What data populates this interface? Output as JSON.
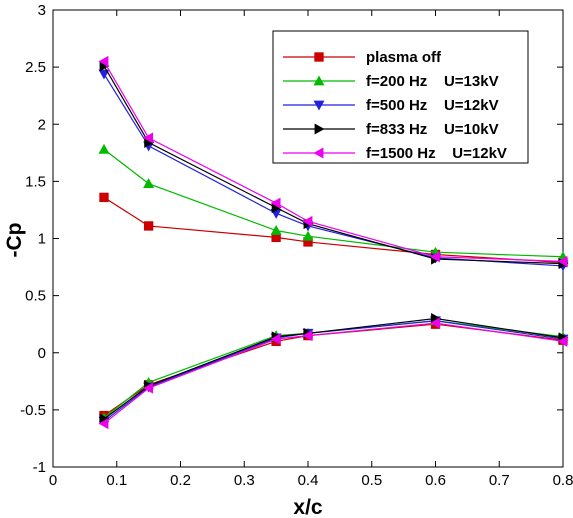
{
  "chart_data": {
    "type": "line",
    "xlabel": "x/c",
    "ylabel": "-Cp",
    "xlim": [
      0,
      0.8
    ],
    "ylim": [
      -1,
      3
    ],
    "xticks": [
      "0",
      "0.1",
      "0.2",
      "0.3",
      "0.4",
      "0.5",
      "0.6",
      "0.7",
      "0.8"
    ],
    "yticks": [
      "-1",
      "-0.5",
      "0",
      "0.5",
      "1",
      "1.5",
      "2",
      "2.5",
      "3"
    ],
    "xtick_values": [
      0,
      0.1,
      0.2,
      0.3,
      0.4,
      0.5,
      0.6,
      0.7,
      0.8
    ],
    "ytick_values": [
      -1,
      -0.5,
      0,
      0.5,
      1,
      1.5,
      2,
      2.5,
      3
    ],
    "grid": false,
    "legend_position": "top-right",
    "series": [
      {
        "name": "plasma off",
        "color": "#cc0000",
        "marker": "square",
        "upper": {
          "x": [
            0.08,
            0.15,
            0.35,
            0.4,
            0.6,
            0.8
          ],
          "y": [
            1.36,
            1.11,
            1.01,
            0.97,
            0.86,
            0.79
          ]
        },
        "lower": {
          "x": [
            0.08,
            0.15,
            0.35,
            0.4,
            0.6,
            0.8
          ],
          "y": [
            -0.55,
            -0.28,
            0.1,
            0.15,
            0.25,
            0.11
          ]
        }
      },
      {
        "name": "f=200 Hz    U=13kV",
        "color": "#00bb00",
        "marker": "triangle-up",
        "upper": {
          "x": [
            0.08,
            0.15,
            0.35,
            0.4,
            0.6,
            0.8
          ],
          "y": [
            1.78,
            1.48,
            1.07,
            1.02,
            0.88,
            0.84
          ]
        },
        "lower": {
          "x": [
            0.08,
            0.15,
            0.35,
            0.4,
            0.6,
            0.8
          ],
          "y": [
            -0.57,
            -0.26,
            0.15,
            0.17,
            0.28,
            0.14
          ]
        }
      },
      {
        "name": "f=500 Hz    U=12kV",
        "color": "#2222dd",
        "marker": "triangle-down",
        "upper": {
          "x": [
            0.08,
            0.15,
            0.35,
            0.4,
            0.6,
            0.8
          ],
          "y": [
            2.44,
            1.81,
            1.22,
            1.11,
            0.83,
            0.76
          ]
        },
        "lower": {
          "x": [
            0.08,
            0.15,
            0.35,
            0.4,
            0.6,
            0.8
          ],
          "y": [
            -0.6,
            -0.3,
            0.13,
            0.17,
            0.28,
            0.12
          ]
        }
      },
      {
        "name": "f=833 Hz    U=10kV",
        "color": "#000000",
        "marker": "triangle-right",
        "upper": {
          "x": [
            0.08,
            0.15,
            0.35,
            0.4,
            0.6,
            0.8
          ],
          "y": [
            2.51,
            1.84,
            1.27,
            1.13,
            0.82,
            0.78
          ]
        },
        "lower": {
          "x": [
            0.08,
            0.15,
            0.35,
            0.4,
            0.6,
            0.8
          ],
          "y": [
            -0.58,
            -0.29,
            0.14,
            0.17,
            0.3,
            0.13
          ]
        }
      },
      {
        "name": "f=1500 Hz    U=12kV",
        "color": "#ee00ee",
        "marker": "triangle-left",
        "upper": {
          "x": [
            0.08,
            0.15,
            0.35,
            0.4,
            0.6,
            0.8
          ],
          "y": [
            2.55,
            1.88,
            1.31,
            1.15,
            0.84,
            0.8
          ]
        },
        "lower": {
          "x": [
            0.08,
            0.15,
            0.35,
            0.4,
            0.6,
            0.8
          ],
          "y": [
            -0.62,
            -0.31,
            0.12,
            0.15,
            0.26,
            0.1
          ]
        }
      }
    ]
  }
}
